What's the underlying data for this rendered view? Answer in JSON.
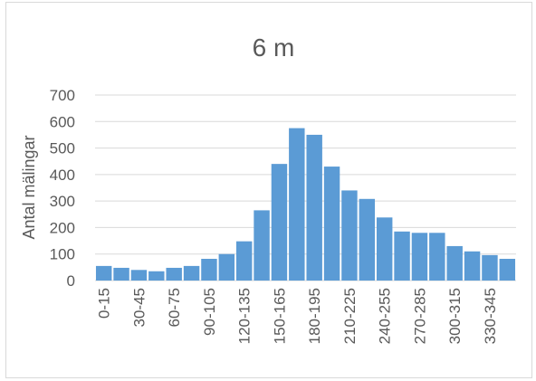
{
  "chart_data": {
    "type": "bar",
    "title": "6 m",
    "xlabel": "",
    "ylabel": "Antal mälingar",
    "ylim": [
      0,
      700
    ],
    "yticks": [
      0,
      100,
      200,
      300,
      400,
      500,
      600,
      700
    ],
    "grid": true,
    "bar_color": "#5b9bd5",
    "categories": [
      "0-15",
      "15-30",
      "30-45",
      "45-60",
      "60-75",
      "75-90",
      "90-105",
      "105-120",
      "120-135",
      "135-150",
      "150-165",
      "165-180",
      "180-195",
      "195-210",
      "210-225",
      "225-240",
      "240-255",
      "255-270",
      "270-285",
      "285-300",
      "300-315",
      "315-330",
      "330-345",
      "345-360"
    ],
    "shown_tick_labels": [
      "0-15",
      "30-45",
      "60-75",
      "90-105",
      "120-135",
      "150-165",
      "180-195",
      "210-225",
      "240-255",
      "270-285",
      "300-315",
      "330-345"
    ],
    "values": [
      55,
      48,
      40,
      35,
      48,
      55,
      82,
      100,
      148,
      265,
      440,
      575,
      550,
      430,
      340,
      308,
      238,
      185,
      180,
      180,
      130,
      110,
      96,
      82
    ]
  }
}
